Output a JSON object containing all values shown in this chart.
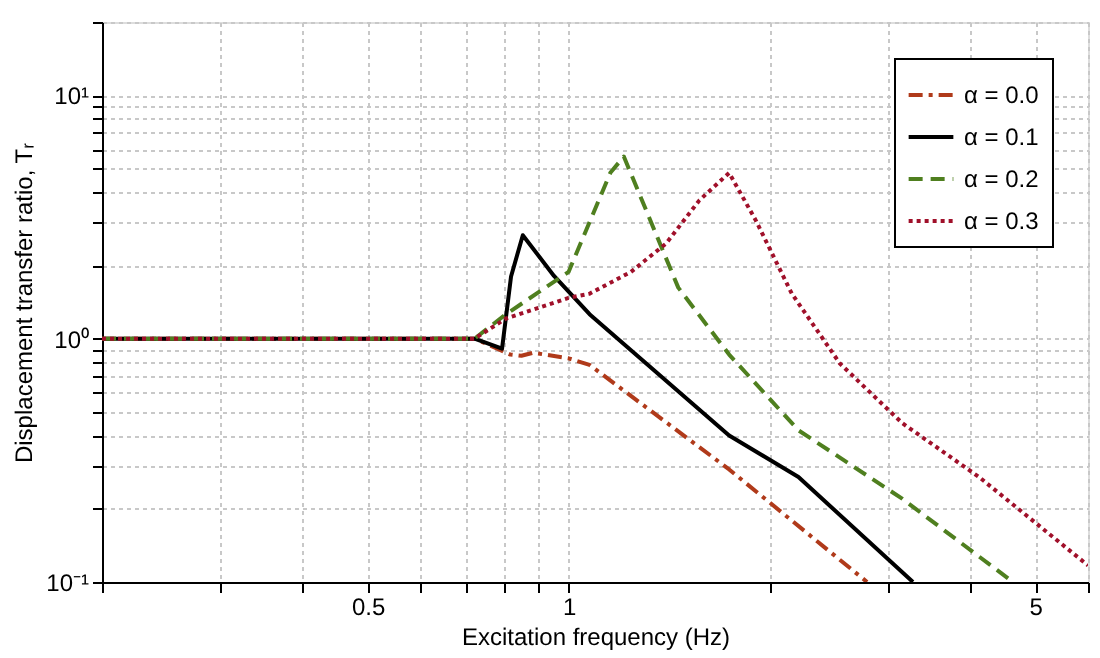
{
  "chart_data": {
    "type": "line",
    "xlabel": "Excitation frequency  (Hz)",
    "ylabel": "Displacement transfer ratio, Tᵣ",
    "log": "xy",
    "grid": true,
    "legend": "top right",
    "xlim": [
      0.2,
      6
    ],
    "ylim": [
      0.1,
      20
    ],
    "xticks": [
      {
        "value": 0.2,
        "label": null
      },
      {
        "value": 0.3,
        "label": null
      },
      {
        "value": 0.4,
        "label": null
      },
      0.5,
      {
        "value": 0.6,
        "label": null
      },
      {
        "value": 0.7,
        "label": null
      },
      {
        "value": 0.8,
        "label": null
      },
      {
        "value": 0.9,
        "label": null
      },
      1,
      {
        "value": 2,
        "label": null
      },
      {
        "value": 3,
        "label": null
      },
      {
        "value": 4,
        "label": null
      },
      5,
      {
        "value": 6,
        "label": null
      }
    ],
    "yticks": [
      {
        "value": 0.1,
        "label": "10⁻¹"
      },
      {
        "value": 0.2,
        "label": null
      },
      {
        "value": 0.3,
        "label": null
      },
      {
        "value": 0.4,
        "label": null
      },
      {
        "value": 0.5,
        "label": null
      },
      {
        "value": 0.6,
        "label": null
      },
      {
        "value": 0.7,
        "label": null
      },
      {
        "value": 0.8,
        "label": null
      },
      {
        "value": 0.9,
        "label": null
      },
      {
        "value": 1,
        "label": "10⁰"
      },
      {
        "value": 2,
        "label": null
      },
      {
        "value": 3,
        "label": null
      },
      {
        "value": 4,
        "label": null
      },
      {
        "value": 5,
        "label": null
      },
      {
        "value": 6,
        "label": null
      },
      {
        "value": 7,
        "label": null
      },
      {
        "value": 8,
        "label": null
      },
      {
        "value": 9,
        "label": null
      },
      {
        "value": 10,
        "label": "10¹"
      },
      {
        "value": 20,
        "label": null
      }
    ],
    "series": [
      {
        "name": "α = 0.0",
        "color": "#b03a1a",
        "line_style": "dashdot",
        "x": [
          0.2,
          0.723,
          0.818,
          0.85,
          0.885,
          1.0,
          1.075,
          1.74,
          2.8
        ],
        "values": [
          1,
          1,
          0.86,
          0.85,
          0.875,
          0.83,
          0.78,
          0.29,
          0.1
        ]
      },
      {
        "name": "α = 0.1",
        "color": "#000000",
        "line_style": "solid",
        "x": [
          0.2,
          0.723,
          0.795,
          0.82,
          0.854,
          0.951,
          1.075,
          1.74,
          2.21,
          3.28
        ],
        "values": [
          1,
          1,
          0.91,
          1.8,
          2.66,
          1.81,
          1.26,
          0.4,
          0.27,
          0.1
        ]
      },
      {
        "name": "α = 0.2",
        "color": "#4f7f1f",
        "line_style": "dashed",
        "x": [
          0.2,
          0.723,
          0.806,
          1.0,
          1.155,
          1.21,
          1.46,
          1.74,
          2.21,
          3.16,
          4.63
        ],
        "values": [
          1,
          1,
          1.26,
          1.88,
          4.8,
          5.6,
          1.62,
          0.86,
          0.42,
          0.22,
          0.1
        ]
      },
      {
        "name": "α = 0.3",
        "color": "#a0102a",
        "line_style": "dotted",
        "x": [
          0.2,
          0.723,
          0.806,
          1.0,
          1.075,
          1.24,
          1.4,
          1.57,
          1.74,
          1.91,
          2.16,
          2.55,
          3.16,
          4.12,
          6
        ],
        "values": [
          1,
          1,
          1.21,
          1.47,
          1.53,
          1.88,
          2.46,
          3.7,
          4.8,
          3.04,
          1.53,
          0.79,
          0.45,
          0.27,
          0.117
        ]
      }
    ]
  }
}
